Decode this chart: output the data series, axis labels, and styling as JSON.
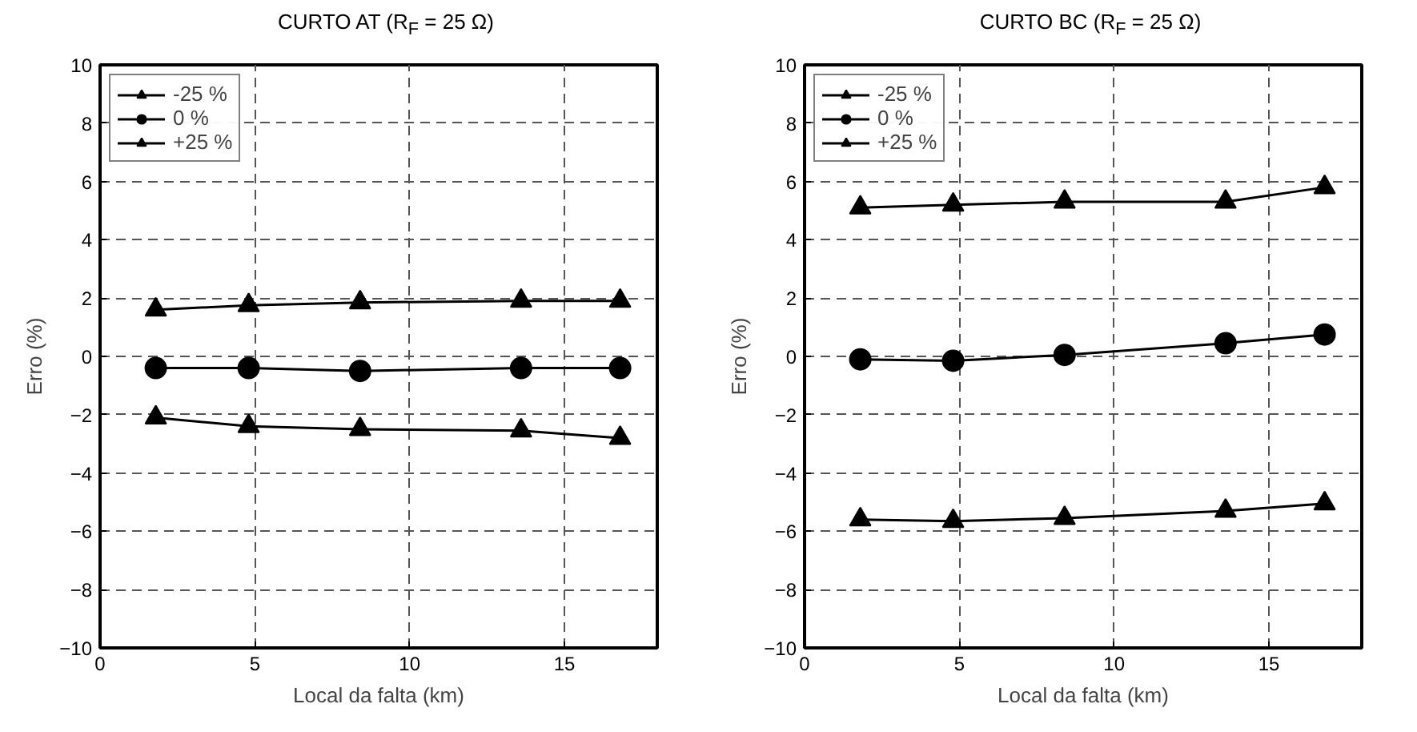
{
  "chart_data": [
    {
      "type": "line",
      "title": "CURTO AT (R$_{F}$ = 25 Ω)",
      "xlabel": "Local da falta (km)",
      "ylabel": "Erro (%)",
      "x": [
        1.8,
        4.8,
        8.4,
        13.6,
        16.8
      ],
      "xlim": [
        0,
        18
      ],
      "xticks": [
        0,
        5,
        10,
        15
      ],
      "ylim": [
        -10,
        10
      ],
      "yticks": [
        -10,
        -8,
        -6,
        -4,
        -2,
        0,
        2,
        4,
        6,
        8,
        10
      ],
      "grid": true,
      "legend": "top left",
      "line_style": "solid",
      "series": [
        {
          "name": "-25 %",
          "color": "#000000",
          "marker": "triangle",
          "values": [
            1.6,
            1.75,
            1.85,
            1.9,
            1.9
          ]
        },
        {
          "name": "0 %",
          "color": "#000000",
          "marker": "circle",
          "values": [
            -0.4,
            -0.4,
            -0.5,
            -0.4,
            -0.4
          ]
        },
        {
          "name": "+25 %",
          "color": "#000000",
          "marker": "triangle",
          "values": [
            -2.1,
            -2.4,
            -2.5,
            -2.55,
            -2.8
          ]
        }
      ]
    },
    {
      "type": "line",
      "title": "CURTO BC (R$_{F}$ = 25 Ω)",
      "xlabel": "Local da falta (km)",
      "ylabel": "Erro (%)",
      "x": [
        1.8,
        4.8,
        8.4,
        13.6,
        16.8
      ],
      "xlim": [
        0,
        18
      ],
      "xticks": [
        0,
        5,
        10,
        15
      ],
      "ylim": [
        -10,
        10
      ],
      "yticks": [
        -10,
        -8,
        -6,
        -4,
        -2,
        0,
        2,
        4,
        6,
        8,
        10
      ],
      "grid": true,
      "legend": "top left",
      "line_style": "solid",
      "series": [
        {
          "name": "-25 %",
          "color": "#000000",
          "marker": "triangle",
          "values": [
            5.1,
            5.2,
            5.3,
            5.3,
            5.8
          ]
        },
        {
          "name": "0 %",
          "color": "#000000",
          "marker": "circle",
          "values": [
            -0.1,
            -0.15,
            0.05,
            0.45,
            0.75
          ]
        },
        {
          "name": "+25 %",
          "color": "#000000",
          "marker": "triangle",
          "values": [
            -5.6,
            -5.65,
            -5.55,
            -5.3,
            -5.05
          ]
        }
      ]
    }
  ]
}
